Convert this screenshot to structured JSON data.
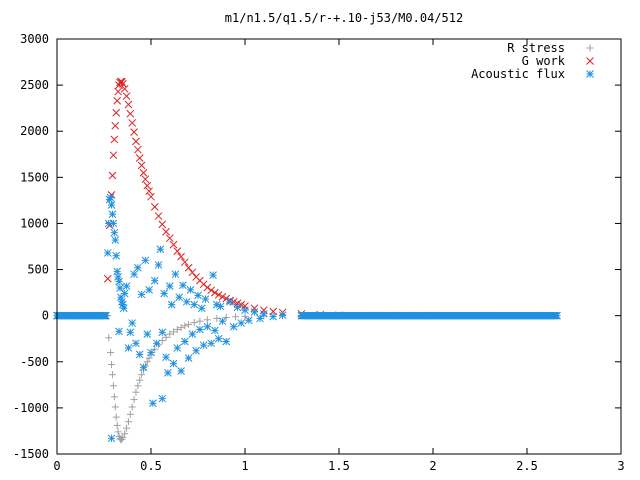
{
  "chart_data": {
    "type": "scatter",
    "title": "m1/n1.5/q1.5/r-+.10-j53/M0.04/512",
    "xlabel": "",
    "ylabel": "",
    "xlim": [
      0,
      3
    ],
    "ylim": [
      -1500,
      3000
    ],
    "x_ticks": [
      "0",
      "0.5",
      "1",
      "1.5",
      "2",
      "2.5",
      "3"
    ],
    "y_ticks": [
      "-1500",
      "-1000",
      "-500",
      "0",
      "500",
      "1000",
      "1500",
      "2000",
      "2500",
      "3000"
    ],
    "grid": false,
    "legend_position": "top-right",
    "series": [
      {
        "name": "R stress",
        "marker": "plus",
        "color": "#a0a0a0",
        "points": [
          [
            0.25,
            0
          ],
          [
            0.27,
            0
          ],
          [
            0.275,
            -240
          ],
          [
            0.285,
            -400
          ],
          [
            0.29,
            -530
          ],
          [
            0.295,
            -640
          ],
          [
            0.3,
            -760
          ],
          [
            0.305,
            -880
          ],
          [
            0.31,
            -990
          ],
          [
            0.315,
            -1100
          ],
          [
            0.32,
            -1190
          ],
          [
            0.325,
            -1260
          ],
          [
            0.33,
            -1310
          ],
          [
            0.335,
            -1335
          ],
          [
            0.34,
            -1345
          ],
          [
            0.345,
            -1340
          ],
          [
            0.35,
            -1320
          ],
          [
            0.36,
            -1280
          ],
          [
            0.37,
            -1220
          ],
          [
            0.38,
            -1150
          ],
          [
            0.39,
            -1070
          ],
          [
            0.4,
            -990
          ],
          [
            0.41,
            -910
          ],
          [
            0.42,
            -830
          ],
          [
            0.43,
            -760
          ],
          [
            0.44,
            -700
          ],
          [
            0.45,
            -640
          ],
          [
            0.46,
            -590
          ],
          [
            0.47,
            -545
          ],
          [
            0.48,
            -500
          ],
          [
            0.49,
            -460
          ],
          [
            0.5,
            -425
          ],
          [
            0.52,
            -365
          ],
          [
            0.54,
            -315
          ],
          [
            0.56,
            -270
          ],
          [
            0.58,
            -235
          ],
          [
            0.6,
            -200
          ],
          [
            0.62,
            -175
          ],
          [
            0.64,
            -150
          ],
          [
            0.66,
            -130
          ],
          [
            0.68,
            -110
          ],
          [
            0.7,
            -95
          ],
          [
            0.73,
            -75
          ],
          [
            0.76,
            -60
          ],
          [
            0.8,
            -45
          ],
          [
            0.85,
            -30
          ],
          [
            0.9,
            -20
          ],
          [
            0.95,
            -12
          ],
          [
            1.0,
            -7
          ],
          [
            1.1,
            -3
          ],
          [
            1.2,
            -1
          ],
          [
            1.4,
            0
          ]
        ]
      },
      {
        "name": "G work",
        "marker": "cross",
        "color": "#e02020",
        "points": [
          [
            0.25,
            0
          ],
          [
            0.26,
            0
          ],
          [
            0.27,
            400
          ],
          [
            0.28,
            980
          ],
          [
            0.29,
            1310
          ],
          [
            0.295,
            1520
          ],
          [
            0.3,
            1740
          ],
          [
            0.305,
            1910
          ],
          [
            0.31,
            2060
          ],
          [
            0.315,
            2200
          ],
          [
            0.32,
            2330
          ],
          [
            0.325,
            2430
          ],
          [
            0.33,
            2500
          ],
          [
            0.335,
            2530
          ],
          [
            0.34,
            2540
          ],
          [
            0.345,
            2535
          ],
          [
            0.35,
            2515
          ],
          [
            0.36,
            2460
          ],
          [
            0.37,
            2380
          ],
          [
            0.38,
            2290
          ],
          [
            0.39,
            2190
          ],
          [
            0.4,
            2090
          ],
          [
            0.41,
            1990
          ],
          [
            0.42,
            1890
          ],
          [
            0.43,
            1800
          ],
          [
            0.44,
            1710
          ],
          [
            0.45,
            1630
          ],
          [
            0.46,
            1550
          ],
          [
            0.47,
            1480
          ],
          [
            0.48,
            1410
          ],
          [
            0.49,
            1350
          ],
          [
            0.5,
            1290
          ],
          [
            0.52,
            1180
          ],
          [
            0.54,
            1080
          ],
          [
            0.56,
            990
          ],
          [
            0.58,
            910
          ],
          [
            0.6,
            840
          ],
          [
            0.62,
            770
          ],
          [
            0.64,
            700
          ],
          [
            0.66,
            640
          ],
          [
            0.68,
            580
          ],
          [
            0.7,
            520
          ],
          [
            0.72,
            470
          ],
          [
            0.74,
            420
          ],
          [
            0.76,
            380
          ],
          [
            0.78,
            340
          ],
          [
            0.8,
            305
          ],
          [
            0.82,
            275
          ],
          [
            0.84,
            250
          ],
          [
            0.86,
            225
          ],
          [
            0.88,
            205
          ],
          [
            0.9,
            185
          ],
          [
            0.92,
            165
          ],
          [
            0.94,
            150
          ],
          [
            0.96,
            135
          ],
          [
            0.98,
            120
          ],
          [
            1.0,
            105
          ],
          [
            1.05,
            80
          ],
          [
            1.1,
            60
          ],
          [
            1.15,
            45
          ],
          [
            1.2,
            35
          ],
          [
            1.3,
            20
          ],
          [
            1.4,
            10
          ],
          [
            1.5,
            5
          ],
          [
            1.7,
            2
          ],
          [
            2.0,
            0
          ]
        ]
      },
      {
        "name": "Acoustic flux",
        "marker": "star",
        "color": "#2090e0",
        "points": [
          [
            0.0,
            0
          ],
          [
            0.1,
            0
          ],
          [
            0.2,
            0
          ],
          [
            0.26,
            0
          ],
          [
            0.27,
            680
          ],
          [
            0.275,
            1000
          ],
          [
            0.28,
            1260
          ],
          [
            0.285,
            1280
          ],
          [
            0.29,
            1200
          ],
          [
            0.295,
            1100
          ],
          [
            0.3,
            1000
          ],
          [
            0.305,
            900
          ],
          [
            0.31,
            820
          ],
          [
            0.315,
            650
          ],
          [
            0.32,
            480
          ],
          [
            0.325,
            420
          ],
          [
            0.33,
            370
          ],
          [
            0.335,
            300
          ],
          [
            0.34,
            200
          ],
          [
            0.345,
            150
          ],
          [
            0.35,
            120
          ],
          [
            0.355,
            80
          ],
          [
            0.36,
            240
          ],
          [
            0.37,
            320
          ],
          [
            0.38,
            -350
          ],
          [
            0.39,
            -180
          ],
          [
            0.4,
            -80
          ],
          [
            0.41,
            450
          ],
          [
            0.42,
            -300
          ],
          [
            0.43,
            520
          ],
          [
            0.44,
            -420
          ],
          [
            0.45,
            230
          ],
          [
            0.46,
            -560
          ],
          [
            0.47,
            600
          ],
          [
            0.48,
            -200
          ],
          [
            0.49,
            280
          ],
          [
            0.5,
            -400
          ],
          [
            0.51,
            -950
          ],
          [
            0.52,
            380
          ],
          [
            0.53,
            -300
          ],
          [
            0.54,
            550
          ],
          [
            0.55,
            720
          ],
          [
            0.56,
            -180
          ],
          [
            0.57,
            240
          ],
          [
            0.58,
            -450
          ],
          [
            0.59,
            -620
          ],
          [
            0.6,
            320
          ],
          [
            0.61,
            120
          ],
          [
            0.62,
            -520
          ],
          [
            0.63,
            450
          ],
          [
            0.64,
            -350
          ],
          [
            0.65,
            200
          ],
          [
            0.66,
            -600
          ],
          [
            0.67,
            330
          ],
          [
            0.68,
            -280
          ],
          [
            0.69,
            150
          ],
          [
            0.7,
            -460
          ],
          [
            0.71,
            280
          ],
          [
            0.72,
            -200
          ],
          [
            0.73,
            120
          ],
          [
            0.74,
            -380
          ],
          [
            0.75,
            220
          ],
          [
            0.76,
            -150
          ],
          [
            0.77,
            80
          ],
          [
            0.78,
            -320
          ],
          [
            0.79,
            180
          ],
          [
            0.8,
            -120
          ],
          [
            0.82,
            -300
          ],
          [
            0.83,
            440
          ],
          [
            0.84,
            -160
          ],
          [
            0.85,
            120
          ],
          [
            0.86,
            -250
          ],
          [
            0.87,
            100
          ],
          [
            0.88,
            -60
          ],
          [
            0.9,
            -280
          ],
          [
            0.92,
            150
          ],
          [
            0.94,
            -120
          ],
          [
            0.96,
            90
          ],
          [
            0.98,
            -80
          ],
          [
            1.0,
            60
          ],
          [
            1.02,
            -50
          ],
          [
            1.05,
            40
          ],
          [
            1.08,
            -30
          ],
          [
            1.1,
            20
          ],
          [
            1.15,
            -10
          ],
          [
            1.2,
            5
          ],
          [
            1.3,
            0
          ],
          [
            1.5,
            0
          ],
          [
            1.8,
            0
          ],
          [
            2.0,
            0
          ],
          [
            2.3,
            0
          ],
          [
            2.66,
            0
          ],
          [
            0.29,
            -1330
          ],
          [
            0.33,
            -170
          ],
          [
            0.56,
            -900
          ]
        ]
      }
    ]
  }
}
